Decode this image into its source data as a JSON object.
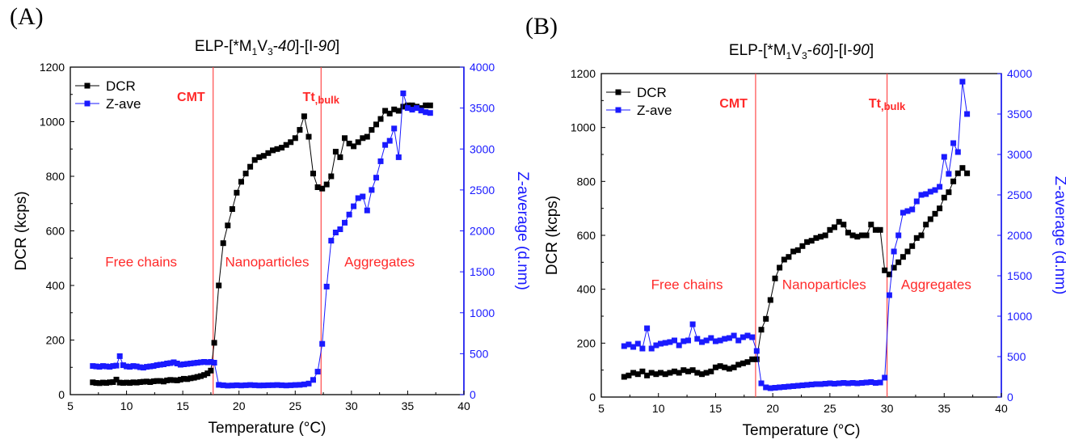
{
  "colors": {
    "dcr": "#000000",
    "zave": "#1a1aff",
    "marker_line": "#ff4a4a",
    "annotation": "#ff2a2a"
  },
  "chart_data": [
    {
      "panel_letter": "(A)",
      "type": "scatter",
      "title": "ELP-[*M1V3-40]-[I-90]",
      "title_parts": {
        "prefix": "ELP-[*M",
        "sub1": "1",
        "mid": "V",
        "sub2": "3",
        "dash": "-",
        "num": "40",
        "rest": "]-[I-",
        "num2": "90",
        "end": "]"
      },
      "xlabel": "Temperature (°C)",
      "ylabel": "DCR (kcps)",
      "y2label": "Z-average (d.nm)",
      "xlim": [
        5,
        40
      ],
      "ylim": [
        0,
        1200
      ],
      "y2lim": [
        0,
        4000
      ],
      "xticks": [
        "5",
        "10",
        "15",
        "20",
        "25",
        "30",
        "35",
        "40"
      ],
      "yticks": [
        "0",
        "200",
        "400",
        "600",
        "800",
        "1000",
        "1200"
      ],
      "y2ticks": [
        "0",
        "500",
        "1000",
        "1500",
        "2000",
        "2500",
        "3000",
        "3500",
        "4000"
      ],
      "legend": {
        "placement": "top-left",
        "entries": [
          "DCR",
          "Z-ave"
        ]
      },
      "vlines": [
        {
          "x": 17.7,
          "label": "CMT"
        },
        {
          "x": 27.3,
          "label": "Tt,bulk"
        }
      ],
      "vline_label_main": [
        "CMT",
        "Tt"
      ],
      "vline_label_sub": ",bulk",
      "regions": [
        {
          "label": "Free chains",
          "x": 11.3,
          "y": 470
        },
        {
          "label": "Nanoparticles",
          "x": 22.5,
          "y": 470
        },
        {
          "label": "Aggregates",
          "x": 32.5,
          "y": 470
        }
      ],
      "series": [
        {
          "name": "DCR",
          "axis": "left",
          "x": [
            7,
            7.3,
            7.6,
            7.9,
            8.2,
            8.5,
            8.8,
            9.1,
            9.4,
            9.7,
            10,
            10.3,
            10.6,
            10.9,
            11.2,
            11.5,
            11.8,
            12.1,
            12.4,
            12.7,
            13,
            13.3,
            13.6,
            13.9,
            14.2,
            14.5,
            14.8,
            15.1,
            15.4,
            15.7,
            16,
            16.3,
            16.6,
            16.9,
            17.2,
            17.5,
            17.8,
            18.2,
            18.6,
            19.0,
            19.4,
            19.8,
            20.2,
            20.6,
            21.0,
            21.4,
            21.8,
            22.2,
            22.6,
            23.0,
            23.4,
            23.8,
            24.2,
            24.6,
            25.0,
            25.4,
            25.8,
            26.2,
            26.6,
            27.0,
            27.4,
            27.8,
            28.2,
            28.6,
            29.0,
            29.4,
            29.8,
            30.2,
            30.6,
            31.0,
            31.4,
            31.8,
            32.2,
            32.6,
            33.0,
            33.4,
            33.8,
            34.2,
            34.6,
            35.0,
            35.4,
            35.8,
            36.2,
            36.6,
            37.0
          ],
          "y": [
            45,
            43,
            42,
            44,
            43,
            45,
            46,
            55,
            44,
            43,
            44,
            43,
            45,
            44,
            46,
            47,
            48,
            46,
            49,
            50,
            50,
            48,
            52,
            54,
            53,
            52,
            55,
            58,
            57,
            60,
            62,
            65,
            68,
            72,
            78,
            88,
            190,
            400,
            555,
            620,
            680,
            740,
            780,
            810,
            835,
            860,
            870,
            875,
            885,
            895,
            900,
            905,
            915,
            925,
            940,
            970,
            1020,
            945,
            810,
            760,
            755,
            770,
            800,
            890,
            870,
            940,
            920,
            910,
            925,
            940,
            945,
            970,
            990,
            1010,
            1040,
            1030,
            1045,
            1040,
            1055,
            1060,
            1060,
            1055,
            1050,
            1060,
            1060
          ]
        },
        {
          "name": "Z-ave",
          "axis": "right",
          "x": [
            7,
            7.3,
            7.6,
            7.9,
            8.2,
            8.5,
            8.8,
            9.1,
            9.4,
            9.7,
            10,
            10.3,
            10.6,
            10.9,
            11.2,
            11.5,
            11.8,
            12.1,
            12.4,
            12.7,
            13,
            13.3,
            13.6,
            13.9,
            14.2,
            14.5,
            14.8,
            15.1,
            15.4,
            15.7,
            16,
            16.3,
            16.6,
            16.9,
            17.2,
            17.5,
            17.8,
            18.2,
            18.6,
            19.0,
            19.4,
            19.8,
            20.2,
            20.6,
            21.0,
            21.4,
            21.8,
            22.2,
            22.6,
            23.0,
            23.4,
            23.8,
            24.2,
            24.6,
            25.0,
            25.4,
            25.8,
            26.2,
            26.6,
            27.0,
            27.4,
            27.8,
            28.2,
            28.6,
            29.0,
            29.4,
            29.8,
            30.2,
            30.6,
            31.0,
            31.4,
            31.8,
            32.2,
            32.6,
            33.0,
            33.4,
            33.8,
            34.2,
            34.6,
            35.0,
            35.4,
            35.8,
            36.2,
            36.6,
            37.0
          ],
          "y": [
            350,
            345,
            340,
            350,
            345,
            340,
            350,
            355,
            470,
            360,
            345,
            340,
            350,
            345,
            335,
            330,
            340,
            345,
            350,
            360,
            365,
            370,
            380,
            385,
            395,
            380,
            365,
            370,
            375,
            380,
            385,
            390,
            395,
            400,
            395,
            400,
            390,
            120,
            115,
            110,
            112,
            115,
            112,
            115,
            118,
            115,
            112,
            113,
            115,
            116,
            118,
            115,
            112,
            115,
            118,
            120,
            125,
            135,
            180,
            280,
            620,
            1320,
            1880,
            1980,
            2020,
            2100,
            2200,
            2300,
            2400,
            2420,
            2250,
            2500,
            2650,
            2850,
            3050,
            3100,
            3250,
            2900,
            3680,
            3500,
            3480,
            3500,
            3470,
            3450,
            3440
          ]
        }
      ]
    },
    {
      "panel_letter": "(B)",
      "type": "scatter",
      "title": "ELP-[*M1V3-60]-[I-90]",
      "title_parts": {
        "prefix": "ELP-[*M",
        "sub1": "1",
        "mid": "V",
        "sub2": "3",
        "dash": "-",
        "num": "60",
        "rest": "]-[I-",
        "num2": "90",
        "end": "]"
      },
      "xlabel": "Temperature (°C)",
      "ylabel": "DCR (kcps)",
      "y2label": "Z-average (d.nm)",
      "xlim": [
        5,
        40
      ],
      "ylim": [
        0,
        1200
      ],
      "y2lim": [
        0,
        4000
      ],
      "xticks": [
        "5",
        "10",
        "15",
        "20",
        "25",
        "30",
        "35",
        "40"
      ],
      "yticks": [
        "0",
        "200",
        "400",
        "600",
        "800",
        "1000",
        "1200"
      ],
      "y2ticks": [
        "0",
        "500",
        "1000",
        "1500",
        "2000",
        "2500",
        "3000",
        "3500",
        "4000"
      ],
      "legend": {
        "placement": "top-left",
        "entries": [
          "DCR",
          "Z-ave"
        ]
      },
      "vlines": [
        {
          "x": 18.5,
          "label": "CMT"
        },
        {
          "x": 30.0,
          "label": "Tt,bulk"
        }
      ],
      "vline_label_main": [
        "CMT",
        "Tt"
      ],
      "vline_label_sub": ",bulk",
      "regions": [
        {
          "label": "Free chains",
          "x": 12.5,
          "y": 400
        },
        {
          "label": "Nanoparticles",
          "x": 24.5,
          "y": 400
        },
        {
          "label": "Aggregates",
          "x": 34.3,
          "y": 400
        }
      ],
      "series": [
        {
          "name": "DCR",
          "axis": "left",
          "x": [
            7,
            7.4,
            7.8,
            8.2,
            8.6,
            9.0,
            9.4,
            9.8,
            10.2,
            10.6,
            11.0,
            11.4,
            11.8,
            12.2,
            12.6,
            13.0,
            13.4,
            13.8,
            14.2,
            14.6,
            15.0,
            15.4,
            15.8,
            16.2,
            16.6,
            17.0,
            17.4,
            17.8,
            18.2,
            18.6,
            19.0,
            19.4,
            19.8,
            20.2,
            20.6,
            21.0,
            21.4,
            21.8,
            22.2,
            22.6,
            23.0,
            23.4,
            23.8,
            24.2,
            24.6,
            25.0,
            25.4,
            25.8,
            26.2,
            26.6,
            27.0,
            27.4,
            27.8,
            28.2,
            28.6,
            29.0,
            29.4,
            29.8,
            30.2,
            30.6,
            31.0,
            31.4,
            31.8,
            32.2,
            32.6,
            33.0,
            33.4,
            33.8,
            34.2,
            34.6,
            35.0,
            35.4,
            35.8,
            36.2,
            36.6,
            37.0
          ],
          "y": [
            75,
            80,
            90,
            85,
            95,
            80,
            90,
            85,
            90,
            85,
            90,
            95,
            90,
            100,
            95,
            100,
            90,
            85,
            90,
            95,
            110,
            115,
            110,
            105,
            110,
            120,
            125,
            130,
            140,
            140,
            250,
            290,
            360,
            440,
            480,
            510,
            520,
            540,
            545,
            560,
            575,
            580,
            590,
            595,
            600,
            620,
            630,
            650,
            640,
            610,
            600,
            595,
            600,
            600,
            640,
            620,
            620,
            470,
            455,
            480,
            500,
            520,
            540,
            560,
            590,
            600,
            640,
            660,
            680,
            700,
            740,
            760,
            800,
            830,
            850,
            830
          ]
        },
        {
          "name": "Z-ave",
          "axis": "right",
          "x": [
            7,
            7.4,
            7.8,
            8.2,
            8.6,
            9.0,
            9.4,
            9.8,
            10.2,
            10.6,
            11.0,
            11.4,
            11.8,
            12.2,
            12.6,
            13.0,
            13.4,
            13.8,
            14.2,
            14.6,
            15.0,
            15.4,
            15.8,
            16.2,
            16.6,
            17.0,
            17.4,
            17.8,
            18.2,
            18.6,
            19.0,
            19.4,
            19.8,
            20.2,
            20.6,
            21.0,
            21.4,
            21.8,
            22.2,
            22.6,
            23.0,
            23.4,
            23.8,
            24.2,
            24.6,
            25.0,
            25.4,
            25.8,
            26.2,
            26.6,
            27.0,
            27.4,
            27.8,
            28.2,
            28.6,
            29.0,
            29.4,
            29.8,
            30.2,
            30.6,
            31.0,
            31.4,
            31.8,
            32.2,
            32.6,
            33.0,
            33.4,
            33.8,
            34.2,
            34.6,
            35.0,
            35.4,
            35.8,
            36.2,
            36.6,
            37.0
          ],
          "y": [
            630,
            650,
            620,
            660,
            600,
            850,
            600,
            640,
            660,
            670,
            680,
            700,
            640,
            690,
            700,
            900,
            720,
            680,
            700,
            730,
            690,
            700,
            720,
            730,
            760,
            700,
            740,
            760,
            740,
            570,
            170,
            120,
            110,
            115,
            120,
            125,
            130,
            135,
            140,
            145,
            150,
            155,
            160,
            160,
            165,
            170,
            165,
            170,
            175,
            170,
            175,
            170,
            175,
            180,
            185,
            175,
            180,
            240,
            1260,
            1800,
            2000,
            2280,
            2300,
            2320,
            2420,
            2500,
            2510,
            2540,
            2560,
            2600,
            2970,
            2760,
            3140,
            3030,
            3900,
            3500
          ]
        }
      ]
    }
  ]
}
